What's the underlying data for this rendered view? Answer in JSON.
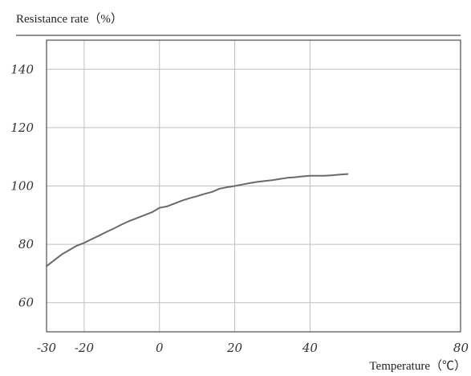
{
  "colors": {
    "grid": "#bfbfbf",
    "frame": "#4d4d4d",
    "curve": "#6a6a6a",
    "text": "#333333"
  },
  "chart_data": {
    "type": "line",
    "title": "",
    "ylabel": "Resistance rate（%）",
    "xlabel": "Temperature（℃）",
    "xlim": [
      -30,
      80
    ],
    "ylim": [
      50,
      150
    ],
    "xticks": [
      -30,
      -20,
      0,
      20,
      40,
      80
    ],
    "xtick_labels": [
      "-30",
      "-20",
      "0",
      "20",
      "40",
      "80"
    ],
    "xgrid": [
      -20,
      0,
      20,
      40
    ],
    "yticks": [
      60,
      80,
      100,
      120,
      140
    ],
    "ytick_labels": [
      "60",
      "80",
      "100",
      "120",
      "140"
    ],
    "grid": true,
    "legend": "none",
    "series": [
      {
        "x": [
          -30,
          -28,
          -26,
          -24,
          -22,
          -20,
          -18,
          -16,
          -14,
          -12,
          -10,
          -8,
          -6,
          -4,
          -2,
          0,
          2,
          4,
          6,
          8,
          10,
          12,
          14,
          16,
          18,
          20,
          22,
          24,
          26,
          28,
          30,
          32,
          34,
          36,
          38,
          40,
          42,
          44,
          46,
          48,
          50
        ],
        "y": [
          72.5,
          74.5,
          76.5,
          78,
          79.5,
          80.5,
          81.8,
          83,
          84.3,
          85.5,
          86.8,
          88,
          89,
          90,
          91,
          92.5,
          93,
          94,
          95,
          95.8,
          96.5,
          97.3,
          98,
          99.1,
          99.6,
          100,
          100.5,
          101,
          101.4,
          101.7,
          102,
          102.4,
          102.8,
          103,
          103.3,
          103.5,
          103.5,
          103.5,
          103.7,
          103.9,
          104.1
        ]
      }
    ]
  }
}
